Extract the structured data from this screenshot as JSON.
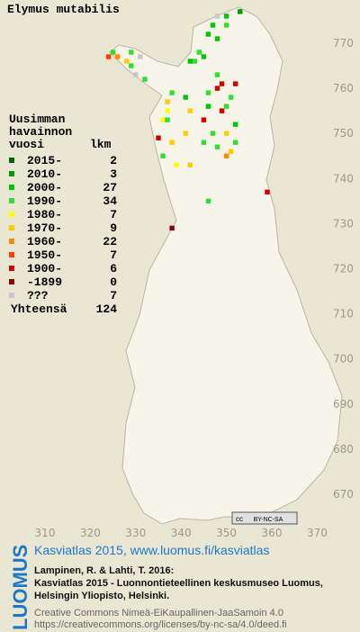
{
  "title": "Elymus mutabilis",
  "legend": {
    "heading": [
      "Uusimman",
      "havainnon",
      "vuosi"
    ],
    "count_heading": "lkm",
    "rows": [
      {
        "label": "2015-",
        "count": 2,
        "color": "#006400"
      },
      {
        "label": "2010-",
        "count": 3,
        "color": "#009a00"
      },
      {
        "label": "2000-",
        "count": 27,
        "color": "#00c800"
      },
      {
        "label": "1990-",
        "count": 34,
        "color": "#33dd33"
      },
      {
        "label": "1980-",
        "count": 7,
        "color": "#ffff00"
      },
      {
        "label": "1970-",
        "count": 9,
        "color": "#ffcc00"
      },
      {
        "label": "1960-",
        "count": 22,
        "color": "#ff8c00"
      },
      {
        "label": "1950-",
        "count": 7,
        "color": "#ff4000"
      },
      {
        "label": "1900-",
        "count": 6,
        "color": "#d00000"
      },
      {
        "label": "-1899",
        "count": 0,
        "color": "#8b0000"
      },
      {
        "label": "???",
        "count": 7,
        "color": "#c8c8c8"
      }
    ],
    "total_label": "Yhteensä",
    "total": 124
  },
  "map": {
    "x_ticks": [
      310,
      320,
      330,
      340,
      350,
      360,
      370
    ],
    "y_ticks": [
      670,
      680,
      690,
      700,
      710,
      720,
      730,
      740,
      750,
      760,
      770
    ],
    "observations": [
      [
        353,
        777,
        1
      ],
      [
        350,
        776,
        2
      ],
      [
        348,
        776,
        10
      ],
      [
        347,
        774,
        2
      ],
      [
        350,
        774,
        3
      ],
      [
        346,
        772,
        2
      ],
      [
        348,
        771,
        2
      ],
      [
        344,
        768,
        3
      ],
      [
        343,
        766,
        3
      ],
      [
        345,
        767,
        2
      ],
      [
        325,
        768,
        3
      ],
      [
        326,
        767,
        6
      ],
      [
        324,
        767,
        7
      ],
      [
        328,
        766,
        5
      ],
      [
        329,
        765,
        3
      ],
      [
        330,
        763,
        10
      ],
      [
        332,
        762,
        3
      ],
      [
        331,
        767,
        10
      ],
      [
        329,
        768,
        3
      ],
      [
        338,
        759,
        3
      ],
      [
        337,
        755,
        4
      ],
      [
        337,
        757,
        5
      ],
      [
        341,
        758,
        2
      ],
      [
        342,
        755,
        5
      ],
      [
        336,
        753,
        4
      ],
      [
        335,
        749,
        8
      ],
      [
        336,
        745,
        3
      ],
      [
        337,
        753,
        3
      ],
      [
        338,
        748,
        5
      ],
      [
        341,
        750,
        5
      ],
      [
        339,
        743,
        4
      ],
      [
        342,
        743,
        5
      ],
      [
        345,
        748,
        3
      ],
      [
        346,
        759,
        3
      ],
      [
        348,
        760,
        8
      ],
      [
        349,
        761,
        8
      ],
      [
        352,
        761,
        8
      ],
      [
        348,
        763,
        3
      ],
      [
        349,
        755,
        8
      ],
      [
        350,
        750,
        5
      ],
      [
        347,
        750,
        3
      ],
      [
        350,
        745,
        6
      ],
      [
        351,
        746,
        5
      ],
      [
        352,
        748,
        3
      ],
      [
        348,
        747,
        3
      ],
      [
        345,
        753,
        8
      ],
      [
        346,
        735,
        3
      ],
      [
        359,
        737,
        8
      ],
      [
        338,
        729,
        9
      ],
      [
        350,
        756,
        3
      ],
      [
        346,
        756,
        2
      ],
      [
        351,
        758,
        3
      ],
      [
        352,
        752,
        2
      ],
      [
        342,
        766,
        2
      ]
    ]
  },
  "cc_badge": [
    "cc",
    "BY-NC-SA"
  ],
  "footer": {
    "logo": "LUOMUS",
    "headline": "Kasviatlas 2015, www.luomus.fi/kasviatlas",
    "citation": [
      "Lampinen, R. & Lahti, T. 2016:",
      "Kasviatlas 2015 - Luonnontieteellinen keskusmuseo Luomus,",
      "Helsingin Yliopisto, Helsinki."
    ],
    "license": [
      "Creative Commons Nimeä-EiKaupallinen-JaaSamoin 4.0",
      "https://creativecommons.org/licenses/by-nc-sa/4.0/deed.fi"
    ]
  }
}
